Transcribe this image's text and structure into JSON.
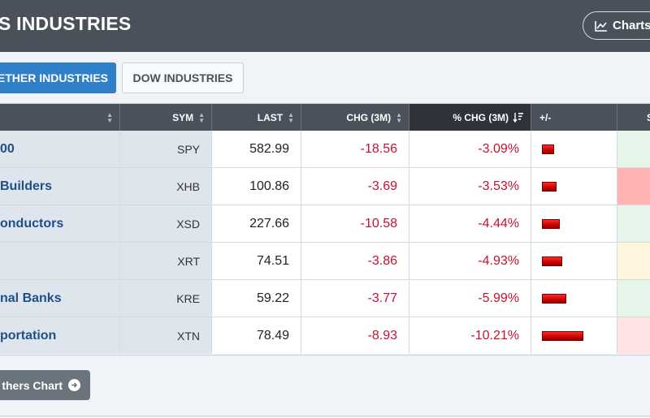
{
  "header": {
    "title": "S INDUSTRIES",
    "charts_label": "Charts",
    "charts_icon": "line-chart-icon"
  },
  "tabs": [
    {
      "label": "ETHER INDUSTRIES",
      "active": true
    },
    {
      "label": "DOW INDUSTRIES",
      "active": false
    }
  ],
  "table": {
    "columns": {
      "sym": "SYM",
      "last": "LAST",
      "chg": "CHG (3M)",
      "pct": "% CHG (3M)",
      "bar": "+/-",
      "extra": "S"
    },
    "sorted_column": "pct",
    "rows": [
      {
        "name": "00",
        "sym": "SPY",
        "last": "582.99",
        "chg": "-18.56",
        "pct": "-3.09%",
        "pct_value": -3.09,
        "extra_color": "#e6f5ea"
      },
      {
        "name": " Builders",
        "sym": "XHB",
        "last": "100.86",
        "chg": "-3.69",
        "pct": "-3.53%",
        "pct_value": -3.53,
        "extra_color": "#ffb3b3"
      },
      {
        "name": "onductors",
        "sym": "XSD",
        "last": "227.66",
        "chg": "-10.58",
        "pct": "-4.44%",
        "pct_value": -4.44,
        "extra_color": "#e6f5ea"
      },
      {
        "name": "",
        "sym": "XRT",
        "last": "74.51",
        "chg": "-3.86",
        "pct": "-4.93%",
        "pct_value": -4.93,
        "extra_color": "#fff6df"
      },
      {
        "name": "nal Banks",
        "sym": "KRE",
        "last": "59.22",
        "chg": "-3.77",
        "pct": "-5.99%",
        "pct_value": -5.99,
        "extra_color": "#e6f5ea"
      },
      {
        "name": "portation",
        "sym": "XTN",
        "last": "78.49",
        "chg": "-8.93",
        "pct": "-10.21%",
        "pct_value": -10.21,
        "extra_color": "#ffe2e2"
      }
    ]
  },
  "others_button": {
    "label": "thers Chart",
    "icon": "arrow-right-circle-icon"
  },
  "colors": {
    "header_bg": "#4a515a",
    "accent": "#2f80c8",
    "negative": "#c8102e"
  }
}
